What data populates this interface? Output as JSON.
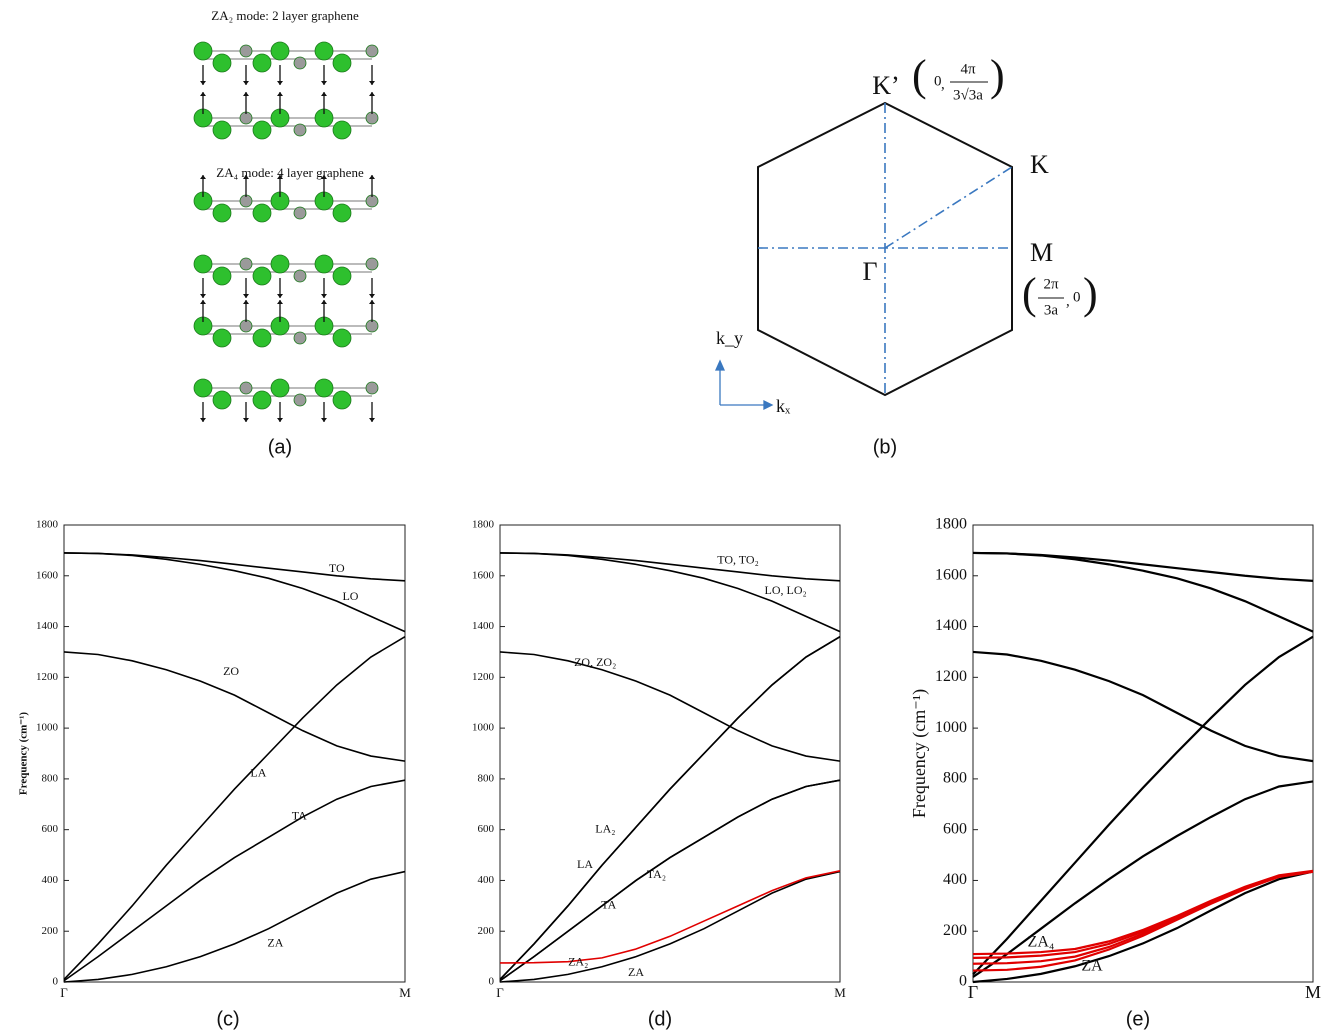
{
  "panel_a": {
    "title_2": "ZA₂ mode: 2 layer graphene",
    "title_4": "ZA₄ mode: 4 layer graphene",
    "caption": "(a)"
  },
  "panel_b": {
    "k_prime": "K’",
    "k": "K",
    "m": "M",
    "gamma": "Γ",
    "kx": "kₓ",
    "ky": "k_y",
    "k_prime_coord": {
      "x": "0",
      "num": "4π",
      "den": "3√3a"
    },
    "m_coord": {
      "num": "2π",
      "den": "3a",
      "y": "0"
    },
    "caption": "(b)"
  },
  "chart_data": [
    {
      "type": "line",
      "caption": "(c)",
      "ylabel": "Frequency (cm⁻¹)",
      "x": [
        0,
        0.1,
        0.2,
        0.3,
        0.4,
        0.5,
        0.6,
        0.7,
        0.8,
        0.9,
        1
      ],
      "xlim": [
        0,
        1
      ],
      "xticks": [
        {
          "value": 0,
          "label": "Γ"
        },
        {
          "value": 1,
          "label": "M"
        }
      ],
      "ylim": [
        0,
        1800
      ],
      "yticks": [
        0,
        200,
        400,
        600,
        800,
        1000,
        1200,
        1400,
        1600,
        1800
      ],
      "series": [
        {
          "name": "TO",
          "color": "#000000",
          "values": [
            1690,
            1688,
            1682,
            1672,
            1660,
            1645,
            1630,
            1615,
            1600,
            1588,
            1580
          ]
        },
        {
          "name": "LO",
          "color": "#000000",
          "values": [
            1690,
            1688,
            1680,
            1665,
            1645,
            1620,
            1590,
            1550,
            1500,
            1440,
            1380
          ]
        },
        {
          "name": "ZO",
          "color": "#000000",
          "values": [
            1300,
            1290,
            1265,
            1230,
            1185,
            1130,
            1060,
            990,
            930,
            890,
            870
          ]
        },
        {
          "name": "LA",
          "color": "#000000",
          "values": [
            10,
            150,
            300,
            460,
            610,
            760,
            900,
            1040,
            1170,
            1280,
            1360
          ]
        },
        {
          "name": "TA",
          "color": "#000000",
          "values": [
            5,
            100,
            200,
            300,
            400,
            490,
            570,
            650,
            720,
            770,
            795
          ]
        },
        {
          "name": "ZA",
          "color": "#000000",
          "values": [
            0,
            10,
            30,
            60,
            100,
            150,
            210,
            280,
            350,
            405,
            435
          ]
        }
      ]
    },
    {
      "type": "line",
      "caption": "(d)",
      "x": [
        0,
        0.1,
        0.2,
        0.3,
        0.4,
        0.5,
        0.6,
        0.7,
        0.8,
        0.9,
        1
      ],
      "xlim": [
        0,
        1
      ],
      "xticks": [
        {
          "value": 0,
          "label": "Γ"
        },
        {
          "value": 1,
          "label": "M"
        }
      ],
      "ylim": [
        0,
        1800
      ],
      "yticks": [
        0,
        200,
        400,
        600,
        800,
        1000,
        1200,
        1400,
        1600,
        1800
      ],
      "series": [
        {
          "name": "TO, TO₂",
          "color": "#000000",
          "values": [
            1690,
            1688,
            1682,
            1672,
            1660,
            1645,
            1630,
            1615,
            1600,
            1588,
            1580
          ]
        },
        {
          "name": "LO, LO₂",
          "color": "#000000",
          "values": [
            1690,
            1688,
            1680,
            1665,
            1645,
            1620,
            1590,
            1550,
            1500,
            1440,
            1380
          ]
        },
        {
          "name": "ZO, ZO₂",
          "color": "#000000",
          "values": [
            1300,
            1290,
            1265,
            1230,
            1185,
            1130,
            1060,
            990,
            930,
            890,
            870
          ]
        },
        {
          "name": "LA₂",
          "color": "#000000",
          "values": [
            10,
            150,
            300,
            460,
            610,
            760,
            900,
            1040,
            1170,
            1280,
            1360
          ]
        },
        {
          "name": "LA",
          "color": "#000000",
          "values": [
            10,
            150,
            300,
            460,
            610,
            760,
            900,
            1040,
            1170,
            1280,
            1360
          ]
        },
        {
          "name": "TA₂",
          "color": "#000000",
          "values": [
            5,
            100,
            200,
            300,
            400,
            490,
            570,
            650,
            720,
            770,
            795
          ]
        },
        {
          "name": "TA",
          "color": "#000000",
          "values": [
            5,
            100,
            200,
            300,
            400,
            490,
            570,
            650,
            720,
            770,
            795
          ]
        },
        {
          "name": "ZA",
          "color": "#000000",
          "values": [
            0,
            10,
            30,
            60,
            100,
            150,
            210,
            280,
            350,
            405,
            435
          ]
        },
        {
          "name": "ZA₂",
          "color": "#e00000",
          "values": [
            75,
            76,
            80,
            95,
            130,
            180,
            240,
            300,
            360,
            410,
            438
          ]
        }
      ]
    },
    {
      "type": "line",
      "caption": "(e)",
      "ylabel": "Frequency (cm⁻¹)",
      "x": [
        0,
        0.1,
        0.2,
        0.3,
        0.4,
        0.5,
        0.6,
        0.7,
        0.8,
        0.9,
        1
      ],
      "xlim": [
        0,
        1
      ],
      "xticks": [
        {
          "value": 0,
          "label": "Γ"
        },
        {
          "value": 1,
          "label": "M"
        }
      ],
      "ylim": [
        0,
        1800
      ],
      "yticks": [
        0,
        200,
        400,
        600,
        800,
        1000,
        1200,
        1400,
        1600,
        1800
      ],
      "series": [
        {
          "color": "#000000",
          "values": [
            1690,
            1688,
            1682,
            1672,
            1660,
            1645,
            1630,
            1615,
            1600,
            1588,
            1580
          ]
        },
        {
          "color": "#000000",
          "values": [
            1690,
            1688,
            1680,
            1665,
            1645,
            1620,
            1590,
            1550,
            1500,
            1440,
            1380
          ]
        },
        {
          "color": "#000000",
          "values": [
            1300,
            1290,
            1265,
            1230,
            1185,
            1130,
            1060,
            990,
            930,
            890,
            870
          ]
        },
        {
          "color": "#000000",
          "values": [
            30,
            170,
            320,
            470,
            620,
            765,
            905,
            1040,
            1170,
            1280,
            1360
          ]
        },
        {
          "color": "#000000",
          "values": [
            20,
            110,
            210,
            310,
            405,
            495,
            575,
            650,
            720,
            770,
            790
          ]
        },
        {
          "name": "ZA",
          "color": "#000000",
          "values": [
            0,
            12,
            32,
            62,
            102,
            152,
            212,
            282,
            350,
            405,
            435
          ]
        },
        {
          "name": "ZA₄",
          "color": "#e00000",
          "values": [
            110,
            112,
            118,
            130,
            160,
            205,
            260,
            320,
            375,
            420,
            438
          ]
        },
        {
          "color": "#e00000",
          "values": [
            95,
            97,
            104,
            118,
            150,
            198,
            255,
            316,
            372,
            418,
            436
          ]
        },
        {
          "color": "#e00000",
          "values": [
            72,
            74,
            82,
            100,
            138,
            190,
            250,
            312,
            370,
            416,
            435
          ]
        },
        {
          "color": "#e00000",
          "values": [
            45,
            48,
            60,
            85,
            128,
            182,
            245,
            308,
            366,
            414,
            434
          ]
        }
      ]
    }
  ]
}
